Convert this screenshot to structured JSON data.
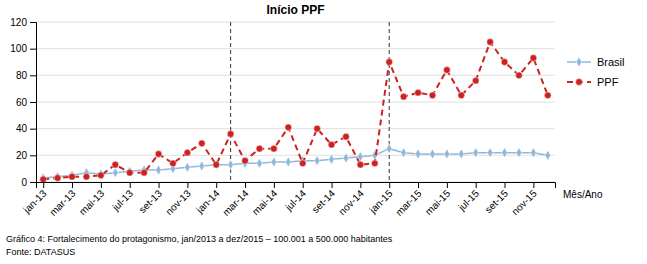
{
  "chart_data": {
    "type": "line",
    "title": "Início PPF",
    "xlabel": "Mês/Ano",
    "categories": [
      "jan-13",
      null,
      "mar-13",
      null,
      "mai-13",
      null,
      "jul-13",
      null,
      "set-13",
      null,
      "nov-13",
      null,
      "jan-14",
      null,
      "mar-14",
      null,
      "mai-14",
      null,
      "jul-14",
      null,
      "set-14",
      null,
      "nov-14",
      null,
      "jan-15",
      null,
      "mar-15",
      null,
      "mai-15",
      null,
      "jul-15",
      null,
      "set-15",
      null,
      "nov-15",
      null
    ],
    "series": [
      {
        "name": "Brasil",
        "color": "#90b8d8",
        "marker": "diamond",
        "line_style": "solid",
        "values": [
          3,
          4,
          5,
          7,
          6,
          7,
          8,
          9,
          9,
          10,
          11,
          12,
          13,
          13,
          14,
          14,
          15,
          15,
          16,
          16,
          17,
          18,
          19,
          20,
          25,
          22,
          21,
          21,
          21,
          21,
          22,
          22,
          22,
          22,
          22,
          20
        ]
      },
      {
        "name": "PPF",
        "color": "#cc2222",
        "marker": "circle",
        "line_style": "dashed",
        "values": [
          2,
          3,
          4,
          4,
          5,
          13,
          7,
          7,
          21,
          14,
          22,
          29,
          13,
          36,
          16,
          25,
          25,
          41,
          14,
          40,
          28,
          34,
          13,
          14,
          90,
          64,
          67,
          65,
          84,
          65,
          76,
          105,
          90,
          80,
          93,
          65
        ]
      }
    ],
    "ylim": [
      0,
      120
    ],
    "yticks": [
      0,
      20,
      40,
      60,
      80,
      100,
      120
    ],
    "grid": true,
    "legend": "right",
    "vlines": [
      13,
      24
    ],
    "annotations": [
      "Gráfico 4: Fortalecimento do protagonismo, jan/2013 a dez/2015 – 100.001 a 500.000 habitantes",
      "Fonte: DATASUS"
    ]
  }
}
